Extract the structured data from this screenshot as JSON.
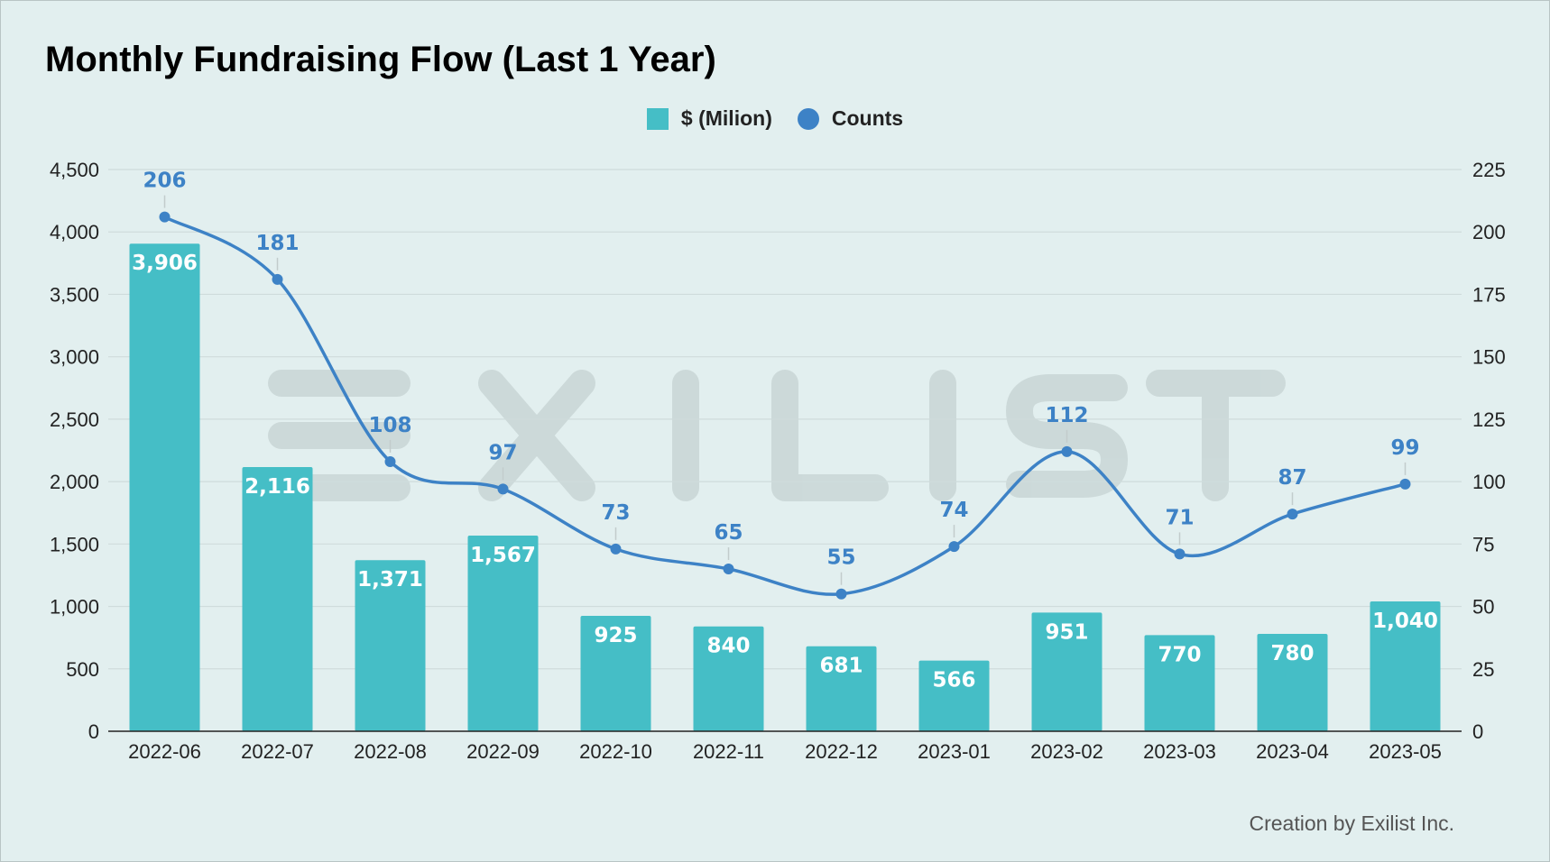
{
  "chart_data": {
    "type": "bar+line",
    "title": "Monthly Fundraising Flow (Last 1 Year)",
    "categories": [
      "2022-06",
      "2022-07",
      "2022-08",
      "2022-09",
      "2022-10",
      "2022-11",
      "2022-12",
      "2023-01",
      "2023-02",
      "2023-03",
      "2023-04",
      "2023-05"
    ],
    "series": [
      {
        "name": "$ (Milion)",
        "type": "bar",
        "axis": "left",
        "values": [
          3906,
          2116,
          1371,
          1567,
          925,
          840,
          681,
          566,
          951,
          770,
          780,
          1040
        ],
        "labels": [
          "3,906",
          "2,116",
          "1,371",
          "1,567",
          "925",
          "840",
          "681",
          "566",
          "951",
          "770",
          "780",
          "1,040"
        ]
      },
      {
        "name": "Counts",
        "type": "line",
        "axis": "right",
        "values": [
          206,
          181,
          108,
          97,
          73,
          65,
          55,
          74,
          112,
          71,
          87,
          99
        ],
        "labels": [
          "206",
          "181",
          "108",
          "97",
          "73",
          "65",
          "55",
          "74",
          "112",
          "71",
          "87",
          "99"
        ]
      }
    ],
    "left_axis": {
      "ylim": [
        0,
        4500
      ],
      "ticks": [
        0,
        500,
        1000,
        1500,
        2000,
        2500,
        3000,
        3500,
        4000,
        4500
      ],
      "tick_labels": [
        "0",
        "500",
        "1,000",
        "1,500",
        "2,000",
        "2,500",
        "3,000",
        "3,500",
        "4,000",
        "4,500"
      ]
    },
    "right_axis": {
      "ylim": [
        0,
        225
      ],
      "ticks": [
        0,
        25,
        50,
        75,
        100,
        125,
        150,
        175,
        200,
        225
      ],
      "tick_labels": [
        "0",
        "25",
        "50",
        "75",
        "100",
        "125",
        "150",
        "175",
        "200",
        "225"
      ]
    },
    "grid": true,
    "legend_position": "top-center",
    "watermark": "EXILIST",
    "colors": {
      "bar": "#45bec6",
      "line": "#3d82c6",
      "background": "#e2efef",
      "grid": "#cfdcdc"
    }
  },
  "footer": {
    "credit": "Creation by Exilist Inc."
  }
}
